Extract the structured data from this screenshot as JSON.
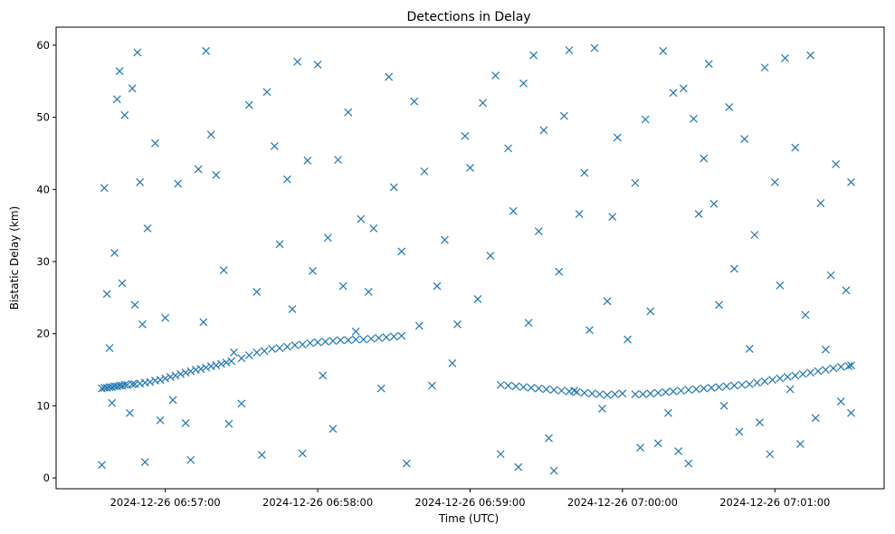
{
  "chart_data": {
    "type": "scatter",
    "title": "Detections in Delay",
    "xlabel": "Time (UTC)",
    "ylabel": "Bistatic Delay (km)",
    "marker": "x",
    "color": "#1f77b4",
    "xlim": [
      "2024-12-26 06:56:17",
      "2024-12-26 07:01:43"
    ],
    "ylim": [
      -1.5,
      62.5
    ],
    "x_ticks": [
      "2024-12-26 06:57:00",
      "2024-12-26 06:58:00",
      "2024-12-26 06:59:00",
      "2024-12-26 07:00:00",
      "2024-12-26 07:01:00"
    ],
    "y_ticks": [
      0,
      10,
      20,
      30,
      40,
      50,
      60
    ],
    "grid": false,
    "series": [
      {
        "points": [
          [
            "2024-12-26 06:56:35",
            12.4
          ],
          [
            "2024-12-26 06:56:36",
            12.5
          ],
          [
            "2024-12-26 06:56:37",
            12.5
          ],
          [
            "2024-12-26 06:56:38",
            12.6
          ],
          [
            "2024-12-26 06:56:39",
            12.6
          ],
          [
            "2024-12-26 06:56:40",
            12.7
          ],
          [
            "2024-12-26 06:56:41",
            12.7
          ],
          [
            "2024-12-26 06:56:42",
            12.8
          ],
          [
            "2024-12-26 06:56:43",
            12.8
          ],
          [
            "2024-12-26 06:56:44",
            12.9
          ],
          [
            "2024-12-26 06:56:45",
            12.9
          ],
          [
            "2024-12-26 06:56:47",
            13.0
          ],
          [
            "2024-12-26 06:56:48",
            13.0
          ],
          [
            "2024-12-26 06:56:50",
            13.1
          ],
          [
            "2024-12-26 06:56:52",
            13.2
          ],
          [
            "2024-12-26 06:56:54",
            13.3
          ],
          [
            "2024-12-26 06:56:56",
            13.5
          ],
          [
            "2024-12-26 06:56:58",
            13.6
          ],
          [
            "2024-12-26 06:57:00",
            13.8
          ],
          [
            "2024-12-26 06:57:02",
            14.0
          ],
          [
            "2024-12-26 06:57:04",
            14.2
          ],
          [
            "2024-12-26 06:57:06",
            14.4
          ],
          [
            "2024-12-26 06:57:08",
            14.6
          ],
          [
            "2024-12-26 06:57:10",
            14.8
          ],
          [
            "2024-12-26 06:57:12",
            15.0
          ],
          [
            "2024-12-26 06:57:14",
            15.1
          ],
          [
            "2024-12-26 06:57:16",
            15.3
          ],
          [
            "2024-12-26 06:57:18",
            15.5
          ],
          [
            "2024-12-26 06:57:20",
            15.6
          ],
          [
            "2024-12-26 06:57:22",
            15.8
          ],
          [
            "2024-12-26 06:57:24",
            16.0
          ],
          [
            "2024-12-26 06:57:26",
            16.2
          ],
          [
            "2024-12-26 06:57:30",
            16.6
          ],
          [
            "2024-12-26 06:57:33",
            17.0
          ],
          [
            "2024-12-26 06:57:36",
            17.4
          ],
          [
            "2024-12-26 06:57:39",
            17.6
          ],
          [
            "2024-12-26 06:57:42",
            17.9
          ],
          [
            "2024-12-26 06:57:45",
            18.0
          ],
          [
            "2024-12-26 06:57:48",
            18.2
          ],
          [
            "2024-12-26 06:57:51",
            18.4
          ],
          [
            "2024-12-26 06:57:54",
            18.5
          ],
          [
            "2024-12-26 06:57:57",
            18.7
          ],
          [
            "2024-12-26 06:58:00",
            18.8
          ],
          [
            "2024-12-26 06:58:03",
            18.9
          ],
          [
            "2024-12-26 06:58:06",
            19.0
          ],
          [
            "2024-12-26 06:58:09",
            19.1
          ],
          [
            "2024-12-26 06:58:12",
            19.1
          ],
          [
            "2024-12-26 06:58:15",
            19.2
          ],
          [
            "2024-12-26 06:58:18",
            19.2
          ],
          [
            "2024-12-26 06:58:21",
            19.3
          ],
          [
            "2024-12-26 06:58:24",
            19.4
          ],
          [
            "2024-12-26 06:58:27",
            19.5
          ],
          [
            "2024-12-26 06:58:30",
            19.6
          ],
          [
            "2024-12-26 06:58:33",
            19.7
          ],
          [
            "2024-12-26 06:59:12",
            12.9
          ],
          [
            "2024-12-26 06:59:15",
            12.8
          ],
          [
            "2024-12-26 06:59:18",
            12.7
          ],
          [
            "2024-12-26 06:59:21",
            12.6
          ],
          [
            "2024-12-26 06:59:24",
            12.5
          ],
          [
            "2024-12-26 06:59:27",
            12.4
          ],
          [
            "2024-12-26 06:59:30",
            12.3
          ],
          [
            "2024-12-26 06:59:33",
            12.2
          ],
          [
            "2024-12-26 06:59:36",
            12.1
          ],
          [
            "2024-12-26 06:59:39",
            12.0
          ],
          [
            "2024-12-26 06:59:42",
            11.9
          ],
          [
            "2024-12-26 06:59:45",
            11.8
          ],
          [
            "2024-12-26 06:59:48",
            11.7
          ],
          [
            "2024-12-26 06:59:51",
            11.6
          ],
          [
            "2024-12-26 06:59:54",
            11.5
          ],
          [
            "2024-12-26 06:59:57",
            11.6
          ],
          [
            "2024-12-26 07:00:05",
            11.6
          ],
          [
            "2024-12-26 07:00:08",
            11.6
          ],
          [
            "2024-12-26 07:00:11",
            11.7
          ],
          [
            "2024-12-26 07:00:14",
            11.8
          ],
          [
            "2024-12-26 07:00:17",
            11.9
          ],
          [
            "2024-12-26 07:00:20",
            12.0
          ],
          [
            "2024-12-26 07:00:23",
            12.1
          ],
          [
            "2024-12-26 07:00:26",
            12.2
          ],
          [
            "2024-12-26 07:00:29",
            12.3
          ],
          [
            "2024-12-26 07:00:32",
            12.4
          ],
          [
            "2024-12-26 07:00:35",
            12.5
          ],
          [
            "2024-12-26 07:00:38",
            12.6
          ],
          [
            "2024-12-26 07:00:41",
            12.7
          ],
          [
            "2024-12-26 07:00:44",
            12.8
          ],
          [
            "2024-12-26 07:00:47",
            12.9
          ],
          [
            "2024-12-26 07:00:50",
            13.0
          ],
          [
            "2024-12-26 07:00:53",
            13.2
          ],
          [
            "2024-12-26 07:00:56",
            13.4
          ],
          [
            "2024-12-26 07:00:59",
            13.6
          ],
          [
            "2024-12-26 07:01:02",
            13.8
          ],
          [
            "2024-12-26 07:01:05",
            14.0
          ],
          [
            "2024-12-26 07:01:08",
            14.2
          ],
          [
            "2024-12-26 07:01:11",
            14.4
          ],
          [
            "2024-12-26 07:01:14",
            14.6
          ],
          [
            "2024-12-26 07:01:17",
            14.8
          ],
          [
            "2024-12-26 07:01:20",
            15.0
          ],
          [
            "2024-12-26 07:01:23",
            15.2
          ],
          [
            "2024-12-26 07:01:26",
            15.4
          ],
          [
            "2024-12-26 07:01:29",
            15.5
          ],
          [
            "2024-12-26 07:01:30",
            15.6
          ],
          [
            "2024-12-26 06:56:35",
            1.8
          ],
          [
            "2024-12-26 06:56:36",
            40.2
          ],
          [
            "2024-12-26 06:56:37",
            25.5
          ],
          [
            "2024-12-26 06:56:38",
            18.0
          ],
          [
            "2024-12-26 06:56:39",
            10.4
          ],
          [
            "2024-12-26 06:56:40",
            31.2
          ],
          [
            "2024-12-26 06:56:41",
            52.5
          ],
          [
            "2024-12-26 06:56:42",
            56.4
          ],
          [
            "2024-12-26 06:56:43",
            27.0
          ],
          [
            "2024-12-26 06:56:44",
            50.3
          ],
          [
            "2024-12-26 06:56:46",
            9.0
          ],
          [
            "2024-12-26 06:56:47",
            54.0
          ],
          [
            "2024-12-26 06:56:48",
            24.0
          ],
          [
            "2024-12-26 06:56:49",
            59.0
          ],
          [
            "2024-12-26 06:56:50",
            41.0
          ],
          [
            "2024-12-26 06:56:51",
            21.3
          ],
          [
            "2024-12-26 06:56:52",
            2.2
          ],
          [
            "2024-12-26 06:56:53",
            34.6
          ],
          [
            "2024-12-26 06:56:56",
            46.4
          ],
          [
            "2024-12-26 06:56:58",
            8.0
          ],
          [
            "2024-12-26 06:57:00",
            22.2
          ],
          [
            "2024-12-26 06:57:03",
            10.8
          ],
          [
            "2024-12-26 06:57:05",
            40.8
          ],
          [
            "2024-12-26 06:57:08",
            7.6
          ],
          [
            "2024-12-26 06:57:10",
            2.5
          ],
          [
            "2024-12-26 06:57:13",
            42.8
          ],
          [
            "2024-12-26 06:57:15",
            21.6
          ],
          [
            "2024-12-26 06:57:16",
            59.2
          ],
          [
            "2024-12-26 06:57:18",
            47.6
          ],
          [
            "2024-12-26 06:57:20",
            42.0
          ],
          [
            "2024-12-26 06:57:23",
            28.8
          ],
          [
            "2024-12-26 06:57:25",
            7.5
          ],
          [
            "2024-12-26 06:57:27",
            17.4
          ],
          [
            "2024-12-26 06:57:30",
            10.3
          ],
          [
            "2024-12-26 06:57:33",
            51.7
          ],
          [
            "2024-12-26 06:57:36",
            25.8
          ],
          [
            "2024-12-26 06:57:38",
            3.2
          ],
          [
            "2024-12-26 06:57:40",
            53.5
          ],
          [
            "2024-12-26 06:57:43",
            46.0
          ],
          [
            "2024-12-26 06:57:45",
            32.4
          ],
          [
            "2024-12-26 06:57:48",
            41.4
          ],
          [
            "2024-12-26 06:57:50",
            23.4
          ],
          [
            "2024-12-26 06:57:52",
            57.7
          ],
          [
            "2024-12-26 06:57:54",
            3.4
          ],
          [
            "2024-12-26 06:57:56",
            44.0
          ],
          [
            "2024-12-26 06:57:58",
            28.7
          ],
          [
            "2024-12-26 06:58:00",
            57.3
          ],
          [
            "2024-12-26 06:58:02",
            14.2
          ],
          [
            "2024-12-26 06:58:04",
            33.3
          ],
          [
            "2024-12-26 06:58:06",
            6.8
          ],
          [
            "2024-12-26 06:58:08",
            44.1
          ],
          [
            "2024-12-26 06:58:10",
            26.6
          ],
          [
            "2024-12-26 06:58:12",
            50.7
          ],
          [
            "2024-12-26 06:58:15",
            20.3
          ],
          [
            "2024-12-26 06:58:17",
            35.9
          ],
          [
            "2024-12-26 06:58:20",
            25.8
          ],
          [
            "2024-12-26 06:58:22",
            34.6
          ],
          [
            "2024-12-26 06:58:25",
            12.4
          ],
          [
            "2024-12-26 06:58:28",
            55.6
          ],
          [
            "2024-12-26 06:58:30",
            40.3
          ],
          [
            "2024-12-26 06:58:33",
            31.4
          ],
          [
            "2024-12-26 06:58:35",
            2.0
          ],
          [
            "2024-12-26 06:58:38",
            52.2
          ],
          [
            "2024-12-26 06:58:40",
            21.1
          ],
          [
            "2024-12-26 06:58:42",
            42.5
          ],
          [
            "2024-12-26 06:58:45",
            12.8
          ],
          [
            "2024-12-26 06:58:47",
            26.6
          ],
          [
            "2024-12-26 06:58:50",
            33.0
          ],
          [
            "2024-12-26 06:58:53",
            15.9
          ],
          [
            "2024-12-26 06:58:55",
            21.3
          ],
          [
            "2024-12-26 06:58:58",
            47.4
          ],
          [
            "2024-12-26 06:59:00",
            43.0
          ],
          [
            "2024-12-26 06:59:03",
            24.8
          ],
          [
            "2024-12-26 06:59:05",
            52.0
          ],
          [
            "2024-12-26 06:59:08",
            30.8
          ],
          [
            "2024-12-26 06:59:10",
            55.8
          ],
          [
            "2024-12-26 06:59:12",
            3.3
          ],
          [
            "2024-12-26 06:59:15",
            45.7
          ],
          [
            "2024-12-26 06:59:17",
            37.0
          ],
          [
            "2024-12-26 06:59:19",
            1.5
          ],
          [
            "2024-12-26 06:59:21",
            54.7
          ],
          [
            "2024-12-26 06:59:23",
            21.5
          ],
          [
            "2024-12-26 06:59:25",
            58.6
          ],
          [
            "2024-12-26 06:59:27",
            34.2
          ],
          [
            "2024-12-26 06:59:29",
            48.2
          ],
          [
            "2024-12-26 06:59:31",
            5.5
          ],
          [
            "2024-12-26 06:59:33",
            1.0
          ],
          [
            "2024-12-26 06:59:35",
            28.6
          ],
          [
            "2024-12-26 06:59:37",
            50.2
          ],
          [
            "2024-12-26 06:59:39",
            59.3
          ],
          [
            "2024-12-26 06:59:41",
            12.1
          ],
          [
            "2024-12-26 06:59:43",
            36.6
          ],
          [
            "2024-12-26 06:59:45",
            42.3
          ],
          [
            "2024-12-26 06:59:47",
            20.5
          ],
          [
            "2024-12-26 06:59:49",
            59.6
          ],
          [
            "2024-12-26 06:59:52",
            9.6
          ],
          [
            "2024-12-26 06:59:54",
            24.5
          ],
          [
            "2024-12-26 06:59:56",
            36.2
          ],
          [
            "2024-12-26 06:59:58",
            47.2
          ],
          [
            "2024-12-26 07:00:00",
            11.7
          ],
          [
            "2024-12-26 07:00:02",
            19.2
          ],
          [
            "2024-12-26 07:00:05",
            40.9
          ],
          [
            "2024-12-26 07:00:07",
            4.2
          ],
          [
            "2024-12-26 07:00:09",
            49.7
          ],
          [
            "2024-12-26 07:00:11",
            23.1
          ],
          [
            "2024-12-26 07:00:14",
            4.8
          ],
          [
            "2024-12-26 07:00:16",
            59.2
          ],
          [
            "2024-12-26 07:00:18",
            9.0
          ],
          [
            "2024-12-26 07:00:20",
            53.4
          ],
          [
            "2024-12-26 07:00:22",
            3.7
          ],
          [
            "2024-12-26 07:00:24",
            54.0
          ],
          [
            "2024-12-26 07:00:26",
            2.0
          ],
          [
            "2024-12-26 07:00:28",
            49.8
          ],
          [
            "2024-12-26 07:00:30",
            36.6
          ],
          [
            "2024-12-26 07:00:32",
            44.3
          ],
          [
            "2024-12-26 07:00:34",
            57.4
          ],
          [
            "2024-12-26 07:00:36",
            38.0
          ],
          [
            "2024-12-26 07:00:38",
            24.0
          ],
          [
            "2024-12-26 07:00:40",
            10.0
          ],
          [
            "2024-12-26 07:00:42",
            51.4
          ],
          [
            "2024-12-26 07:00:44",
            29.0
          ],
          [
            "2024-12-26 07:00:46",
            6.4
          ],
          [
            "2024-12-26 07:00:48",
            47.0
          ],
          [
            "2024-12-26 07:00:50",
            17.9
          ],
          [
            "2024-12-26 07:00:52",
            33.7
          ],
          [
            "2024-12-26 07:00:54",
            7.7
          ],
          [
            "2024-12-26 07:00:56",
            56.9
          ],
          [
            "2024-12-26 07:00:58",
            3.3
          ],
          [
            "2024-12-26 07:01:00",
            41.0
          ],
          [
            "2024-12-26 07:01:02",
            26.7
          ],
          [
            "2024-12-26 07:01:04",
            58.2
          ],
          [
            "2024-12-26 07:01:06",
            12.3
          ],
          [
            "2024-12-26 07:01:08",
            45.8
          ],
          [
            "2024-12-26 07:01:10",
            4.7
          ],
          [
            "2024-12-26 07:01:12",
            22.6
          ],
          [
            "2024-12-26 07:01:14",
            58.6
          ],
          [
            "2024-12-26 07:01:16",
            8.3
          ],
          [
            "2024-12-26 07:01:18",
            38.1
          ],
          [
            "2024-12-26 07:01:20",
            17.8
          ],
          [
            "2024-12-26 07:01:22",
            28.1
          ],
          [
            "2024-12-26 07:01:24",
            43.5
          ],
          [
            "2024-12-26 07:01:26",
            10.6
          ],
          [
            "2024-12-26 07:01:28",
            26.0
          ],
          [
            "2024-12-26 07:01:30",
            9.0
          ],
          [
            "2024-12-26 07:01:30",
            41.0
          ]
        ]
      }
    ]
  }
}
